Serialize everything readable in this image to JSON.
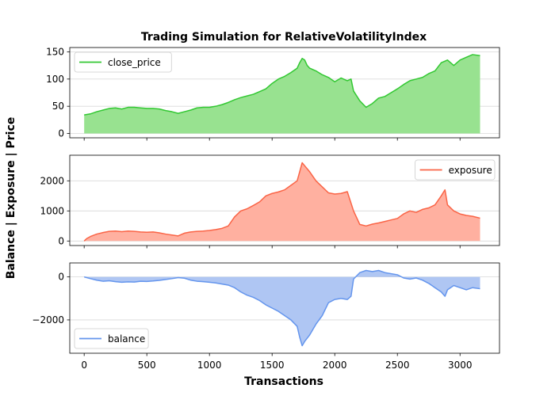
{
  "chart_data": {
    "type": "area",
    "title": "Trading Simulation for RelativeVolatilityIndex",
    "xlabel": "Transactions",
    "ylabel": "Balance | Exposure | Price",
    "shared_x": {
      "xlim": [
        -115,
        3315
      ],
      "ticks": [
        0,
        500,
        1000,
        1500,
        2000,
        2500,
        3000
      ],
      "tick_labels": [
        "0",
        "500",
        "1000",
        "1500",
        "2000",
        "2500",
        "3000"
      ]
    },
    "panels": [
      {
        "name": "close_price",
        "legend": "close_price",
        "legend_position": "upper left",
        "line_color": "#32c832",
        "fill_color": "#98e290",
        "ylim": [
          -8,
          158
        ],
        "yticks": [
          0,
          50,
          100,
          150
        ],
        "ytick_labels": [
          "0",
          "50",
          "100",
          "150"
        ],
        "grid": true,
        "points": [
          [
            0,
            34
          ],
          [
            50,
            36
          ],
          [
            100,
            40
          ],
          [
            150,
            43
          ],
          [
            200,
            46
          ],
          [
            250,
            47
          ],
          [
            300,
            45
          ],
          [
            350,
            48
          ],
          [
            400,
            48
          ],
          [
            450,
            47
          ],
          [
            500,
            46
          ],
          [
            550,
            46
          ],
          [
            600,
            45
          ],
          [
            650,
            42
          ],
          [
            700,
            40
          ],
          [
            750,
            37
          ],
          [
            800,
            40
          ],
          [
            850,
            43
          ],
          [
            900,
            47
          ],
          [
            950,
            48
          ],
          [
            1000,
            48
          ],
          [
            1050,
            50
          ],
          [
            1100,
            53
          ],
          [
            1150,
            57
          ],
          [
            1200,
            62
          ],
          [
            1250,
            66
          ],
          [
            1300,
            69
          ],
          [
            1350,
            72
          ],
          [
            1400,
            77
          ],
          [
            1450,
            82
          ],
          [
            1500,
            92
          ],
          [
            1550,
            100
          ],
          [
            1600,
            105
          ],
          [
            1650,
            112
          ],
          [
            1700,
            120
          ],
          [
            1720,
            130
          ],
          [
            1740,
            138
          ],
          [
            1760,
            135
          ],
          [
            1780,
            125
          ],
          [
            1800,
            120
          ],
          [
            1850,
            115
          ],
          [
            1900,
            108
          ],
          [
            1950,
            103
          ],
          [
            2000,
            95
          ],
          [
            2050,
            102
          ],
          [
            2100,
            97
          ],
          [
            2130,
            100
          ],
          [
            2150,
            78
          ],
          [
            2200,
            60
          ],
          [
            2250,
            48
          ],
          [
            2300,
            55
          ],
          [
            2350,
            65
          ],
          [
            2400,
            68
          ],
          [
            2450,
            75
          ],
          [
            2500,
            82
          ],
          [
            2550,
            90
          ],
          [
            2600,
            97
          ],
          [
            2650,
            100
          ],
          [
            2700,
            103
          ],
          [
            2750,
            110
          ],
          [
            2800,
            115
          ],
          [
            2850,
            130
          ],
          [
            2900,
            135
          ],
          [
            2950,
            125
          ],
          [
            3000,
            135
          ],
          [
            3050,
            140
          ],
          [
            3100,
            145
          ],
          [
            3160,
            143
          ]
        ]
      },
      {
        "name": "exposure",
        "legend": "exposure",
        "legend_position": "upper right",
        "line_color": "#fa6446",
        "fill_color": "#ffb0a0",
        "ylim": [
          -150,
          2850
        ],
        "yticks": [
          0,
          1000,
          2000
        ],
        "ytick_labels": [
          "0",
          "1000",
          "2000"
        ],
        "grid": true,
        "points": [
          [
            0,
            0
          ],
          [
            20,
            80
          ],
          [
            50,
            150
          ],
          [
            100,
            230
          ],
          [
            150,
            280
          ],
          [
            200,
            320
          ],
          [
            250,
            330
          ],
          [
            300,
            310
          ],
          [
            350,
            330
          ],
          [
            400,
            320
          ],
          [
            450,
            300
          ],
          [
            500,
            290
          ],
          [
            550,
            300
          ],
          [
            600,
            270
          ],
          [
            650,
            230
          ],
          [
            700,
            200
          ],
          [
            750,
            170
          ],
          [
            800,
            260
          ],
          [
            850,
            300
          ],
          [
            900,
            320
          ],
          [
            950,
            330
          ],
          [
            1000,
            350
          ],
          [
            1050,
            380
          ],
          [
            1100,
            420
          ],
          [
            1150,
            500
          ],
          [
            1200,
            800
          ],
          [
            1250,
            1000
          ],
          [
            1300,
            1070
          ],
          [
            1350,
            1180
          ],
          [
            1400,
            1300
          ],
          [
            1450,
            1500
          ],
          [
            1500,
            1580
          ],
          [
            1550,
            1630
          ],
          [
            1600,
            1700
          ],
          [
            1650,
            1850
          ],
          [
            1700,
            2000
          ],
          [
            1720,
            2300
          ],
          [
            1740,
            2600
          ],
          [
            1760,
            2500
          ],
          [
            1800,
            2300
          ],
          [
            1850,
            2000
          ],
          [
            1900,
            1800
          ],
          [
            1950,
            1600
          ],
          [
            2000,
            1560
          ],
          [
            2050,
            1580
          ],
          [
            2100,
            1640
          ],
          [
            2150,
            1000
          ],
          [
            2200,
            550
          ],
          [
            2250,
            500
          ],
          [
            2300,
            560
          ],
          [
            2350,
            600
          ],
          [
            2400,
            650
          ],
          [
            2450,
            700
          ],
          [
            2500,
            750
          ],
          [
            2550,
            900
          ],
          [
            2600,
            1000
          ],
          [
            2650,
            950
          ],
          [
            2700,
            1050
          ],
          [
            2750,
            1100
          ],
          [
            2800,
            1200
          ],
          [
            2850,
            1500
          ],
          [
            2880,
            1700
          ],
          [
            2900,
            1200
          ],
          [
            2950,
            1000
          ],
          [
            3000,
            900
          ],
          [
            3050,
            850
          ],
          [
            3100,
            820
          ],
          [
            3160,
            760
          ]
        ]
      },
      {
        "name": "balance",
        "legend": "balance",
        "legend_position": "lower left",
        "line_color": "#6495ed",
        "fill_color": "#afc6f3",
        "ylim": [
          -3550,
          650
        ],
        "yticks": [
          -2000,
          0
        ],
        "ytick_labels": [
          "−2000",
          "0"
        ],
        "grid": true,
        "points": [
          [
            0,
            0
          ],
          [
            50,
            -80
          ],
          [
            100,
            -150
          ],
          [
            150,
            -200
          ],
          [
            200,
            -180
          ],
          [
            250,
            -220
          ],
          [
            300,
            -250
          ],
          [
            350,
            -230
          ],
          [
            400,
            -240
          ],
          [
            450,
            -200
          ],
          [
            500,
            -210
          ],
          [
            550,
            -190
          ],
          [
            600,
            -160
          ],
          [
            650,
            -120
          ],
          [
            700,
            -80
          ],
          [
            750,
            -30
          ],
          [
            800,
            -60
          ],
          [
            850,
            -150
          ],
          [
            900,
            -200
          ],
          [
            950,
            -220
          ],
          [
            1000,
            -250
          ],
          [
            1050,
            -280
          ],
          [
            1100,
            -330
          ],
          [
            1150,
            -380
          ],
          [
            1200,
            -500
          ],
          [
            1250,
            -700
          ],
          [
            1300,
            -850
          ],
          [
            1350,
            -950
          ],
          [
            1400,
            -1100
          ],
          [
            1450,
            -1300
          ],
          [
            1500,
            -1450
          ],
          [
            1550,
            -1600
          ],
          [
            1600,
            -1800
          ],
          [
            1650,
            -2000
          ],
          [
            1700,
            -2300
          ],
          [
            1720,
            -2800
          ],
          [
            1740,
            -3200
          ],
          [
            1760,
            -3000
          ],
          [
            1800,
            -2700
          ],
          [
            1850,
            -2200
          ],
          [
            1900,
            -1800
          ],
          [
            1950,
            -1200
          ],
          [
            2000,
            -1050
          ],
          [
            2050,
            -1000
          ],
          [
            2100,
            -1050
          ],
          [
            2130,
            -900
          ],
          [
            2150,
            -100
          ],
          [
            2200,
            200
          ],
          [
            2250,
            300
          ],
          [
            2300,
            250
          ],
          [
            2350,
            300
          ],
          [
            2400,
            200
          ],
          [
            2450,
            150
          ],
          [
            2500,
            100
          ],
          [
            2550,
            -50
          ],
          [
            2600,
            -100
          ],
          [
            2650,
            -50
          ],
          [
            2700,
            -150
          ],
          [
            2750,
            -300
          ],
          [
            2800,
            -500
          ],
          [
            2850,
            -700
          ],
          [
            2880,
            -900
          ],
          [
            2900,
            -600
          ],
          [
            2950,
            -400
          ],
          [
            3000,
            -500
          ],
          [
            3050,
            -600
          ],
          [
            3100,
            -500
          ],
          [
            3160,
            -550
          ]
        ]
      }
    ]
  }
}
